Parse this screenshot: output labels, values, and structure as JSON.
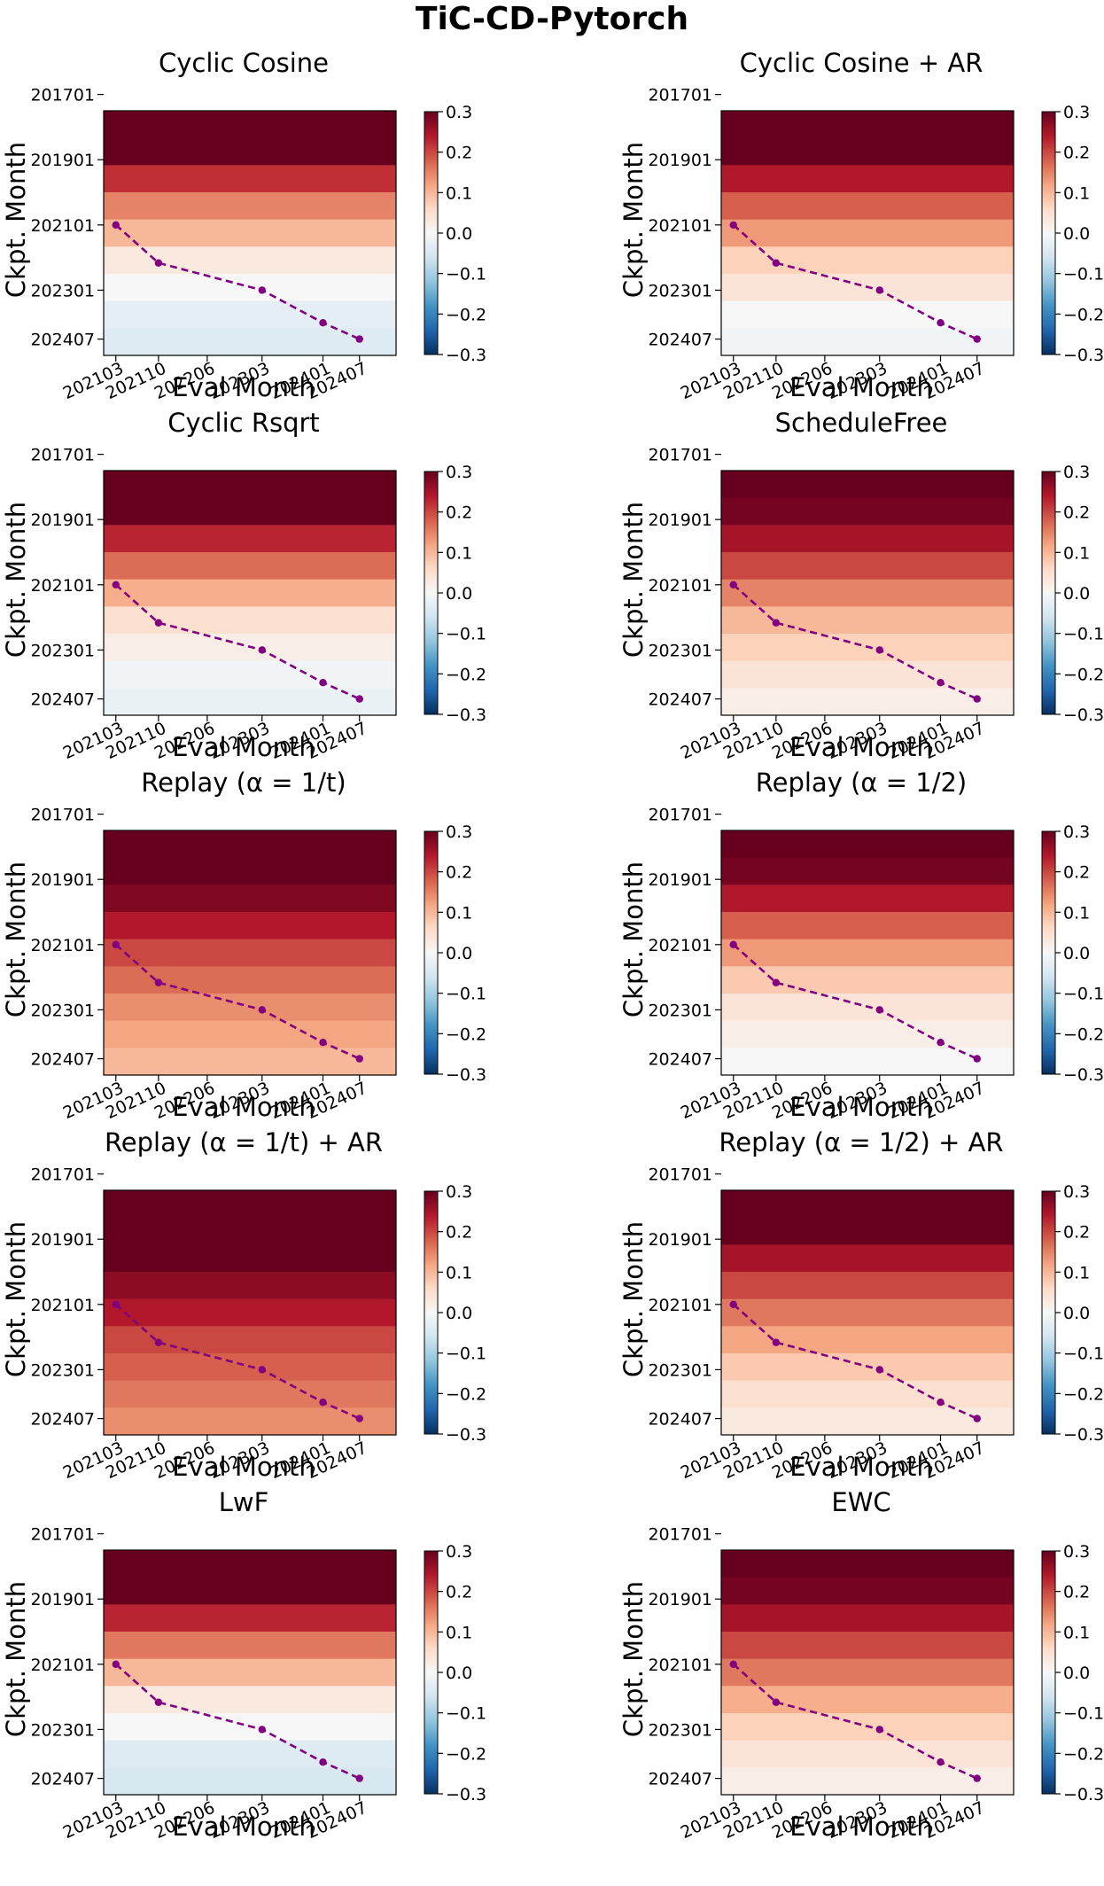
{
  "figure": {
    "title": "TiC-CD-Pytorch",
    "x_label": "Eval Month",
    "y_label": "Ckpt. Month"
  },
  "colors": {
    "colormap": "RdBu_r",
    "colormap_stops": [
      "#053061",
      "#2166ac",
      "#4393c3",
      "#92c5de",
      "#d1e5f0",
      "#f7f7f7",
      "#fddbc7",
      "#f4a582",
      "#d6604d",
      "#b2182b",
      "#67001f"
    ],
    "diagonal_line": "#800080"
  },
  "chart_data": [
    {
      "type": "heatmap",
      "title": "Cyclic Cosine",
      "xlabel": "Eval Month",
      "ylabel": "Ckpt. Month",
      "x_ticks": [
        "202103",
        "202110",
        "202206",
        "202303",
        "202401",
        "202407"
      ],
      "y_ticks": [
        "201701",
        "201901",
        "202101",
        "202301",
        "202407"
      ],
      "colorbar": {
        "range": [
          -0.3,
          0.3
        ],
        "ticks": [
          "0.3",
          "0.2",
          "0.1",
          "0.0",
          "−0.1",
          "−0.2",
          "−0.3"
        ]
      },
      "row_values": [
        0.3,
        0.3,
        0.22,
        0.15,
        0.1,
        0.03,
        0.0,
        -0.03,
        -0.04
      ],
      "diagonal_points": [
        [
          "202103",
          "202101"
        ],
        [
          "202110",
          "202203"
        ],
        [
          "202303",
          "202301"
        ],
        [
          "202401",
          "202401"
        ],
        [
          "202407",
          "202407"
        ]
      ]
    },
    {
      "type": "heatmap",
      "title": "Cyclic Cosine + AR",
      "xlabel": "Eval Month",
      "ylabel": "Ckpt. Month",
      "x_ticks": [
        "202103",
        "202110",
        "202206",
        "202303",
        "202401",
        "202407"
      ],
      "y_ticks": [
        "201701",
        "201901",
        "202101",
        "202301",
        "202407"
      ],
      "colorbar": {
        "range": [
          -0.3,
          0.3
        ],
        "ticks": [
          "0.3",
          "0.2",
          "0.1",
          "0.0",
          "−0.1",
          "−0.2",
          "−0.3"
        ]
      },
      "row_values": [
        0.3,
        0.3,
        0.24,
        0.18,
        0.13,
        0.07,
        0.04,
        0.0,
        -0.01
      ],
      "diagonal_points": [
        [
          "202103",
          "202101"
        ],
        [
          "202110",
          "202203"
        ],
        [
          "202303",
          "202301"
        ],
        [
          "202401",
          "202401"
        ],
        [
          "202407",
          "202407"
        ]
      ]
    },
    {
      "type": "heatmap",
      "title": "Cyclic Rsqrt",
      "xlabel": "Eval Month",
      "ylabel": "Ckpt. Month",
      "x_ticks": [
        "202103",
        "202110",
        "202206",
        "202303",
        "202401",
        "202407"
      ],
      "y_ticks": [
        "201701",
        "201901",
        "202101",
        "202301",
        "202407"
      ],
      "colorbar": {
        "range": [
          -0.3,
          0.3
        ],
        "ticks": [
          "0.3",
          "0.2",
          "0.1",
          "0.0",
          "−0.1",
          "−0.2",
          "−0.3"
        ]
      },
      "row_values": [
        0.3,
        0.3,
        0.23,
        0.17,
        0.11,
        0.05,
        0.02,
        -0.01,
        -0.02
      ],
      "diagonal_points": [
        [
          "202103",
          "202101"
        ],
        [
          "202110",
          "202203"
        ],
        [
          "202303",
          "202301"
        ],
        [
          "202401",
          "202401"
        ],
        [
          "202407",
          "202407"
        ]
      ]
    },
    {
      "type": "heatmap",
      "title": "ScheduleFree",
      "xlabel": "Eval Month",
      "ylabel": "Ckpt. Month",
      "x_ticks": [
        "202103",
        "202110",
        "202206",
        "202303",
        "202401",
        "202407"
      ],
      "y_ticks": [
        "201701",
        "201901",
        "202101",
        "202301",
        "202407"
      ],
      "colorbar": {
        "range": [
          -0.3,
          0.3
        ],
        "ticks": [
          "0.3",
          "0.2",
          "0.1",
          "0.0",
          "−0.1",
          "−0.2",
          "−0.3"
        ]
      },
      "row_values": [
        0.3,
        0.29,
        0.25,
        0.2,
        0.15,
        0.1,
        0.07,
        0.04,
        0.02
      ],
      "diagonal_points": [
        [
          "202103",
          "202101"
        ],
        [
          "202110",
          "202203"
        ],
        [
          "202303",
          "202301"
        ],
        [
          "202401",
          "202401"
        ],
        [
          "202407",
          "202407"
        ]
      ]
    },
    {
      "type": "heatmap",
      "title": "Replay (α = 1/t)",
      "xlabel": "Eval Month",
      "ylabel": "Ckpt. Month",
      "x_ticks": [
        "202103",
        "202110",
        "202206",
        "202303",
        "202401",
        "202407"
      ],
      "y_ticks": [
        "201701",
        "201901",
        "202101",
        "202301",
        "202407"
      ],
      "colorbar": {
        "range": [
          -0.3,
          0.3
        ],
        "ticks": [
          "0.3",
          "0.2",
          "0.1",
          "0.0",
          "−0.1",
          "−0.2",
          "−0.3"
        ]
      },
      "row_values": [
        0.3,
        0.3,
        0.28,
        0.24,
        0.2,
        0.17,
        0.14,
        0.12,
        0.1
      ],
      "diagonal_points": [
        [
          "202103",
          "202101"
        ],
        [
          "202110",
          "202203"
        ],
        [
          "202303",
          "202301"
        ],
        [
          "202401",
          "202401"
        ],
        [
          "202407",
          "202407"
        ]
      ]
    },
    {
      "type": "heatmap",
      "title": "Replay (α = 1/2)",
      "xlabel": "Eval Month",
      "ylabel": "Ckpt. Month",
      "x_ticks": [
        "202103",
        "202110",
        "202206",
        "202303",
        "202401",
        "202407"
      ],
      "y_ticks": [
        "201701",
        "201901",
        "202101",
        "202301",
        "202407"
      ],
      "colorbar": {
        "range": [
          -0.3,
          0.3
        ],
        "ticks": [
          "0.3",
          "0.2",
          "0.1",
          "0.0",
          "−0.1",
          "−0.2",
          "−0.3"
        ]
      },
      "row_values": [
        0.3,
        0.29,
        0.24,
        0.18,
        0.13,
        0.08,
        0.04,
        0.02,
        0.0
      ],
      "diagonal_points": [
        [
          "202103",
          "202101"
        ],
        [
          "202110",
          "202203"
        ],
        [
          "202303",
          "202301"
        ],
        [
          "202401",
          "202401"
        ],
        [
          "202407",
          "202407"
        ]
      ]
    },
    {
      "type": "heatmap",
      "title": "Replay (α = 1/t) + AR",
      "xlabel": "Eval Month",
      "ylabel": "Ckpt. Month",
      "x_ticks": [
        "202103",
        "202110",
        "202206",
        "202303",
        "202401",
        "202407"
      ],
      "y_ticks": [
        "201701",
        "201901",
        "202101",
        "202301",
        "202407"
      ],
      "colorbar": {
        "range": [
          -0.3,
          0.3
        ],
        "ticks": [
          "0.3",
          "0.2",
          "0.1",
          "0.0",
          "−0.1",
          "−0.2",
          "−0.3"
        ]
      },
      "row_values": [
        0.3,
        0.3,
        0.3,
        0.27,
        0.24,
        0.2,
        0.18,
        0.16,
        0.14
      ],
      "diagonal_points": [
        [
          "202103",
          "202101"
        ],
        [
          "202110",
          "202203"
        ],
        [
          "202303",
          "202301"
        ],
        [
          "202401",
          "202401"
        ],
        [
          "202407",
          "202407"
        ]
      ]
    },
    {
      "type": "heatmap",
      "title": "Replay (α = 1/2) + AR",
      "xlabel": "Eval Month",
      "ylabel": "Ckpt. Month",
      "x_ticks": [
        "202103",
        "202110",
        "202206",
        "202303",
        "202401",
        "202407"
      ],
      "y_ticks": [
        "201701",
        "201901",
        "202101",
        "202301",
        "202407"
      ],
      "colorbar": {
        "range": [
          -0.3,
          0.3
        ],
        "ticks": [
          "0.3",
          "0.2",
          "0.1",
          "0.0",
          "−0.1",
          "−0.2",
          "−0.3"
        ]
      },
      "row_values": [
        0.3,
        0.3,
        0.25,
        0.2,
        0.16,
        0.12,
        0.08,
        0.05,
        0.03
      ],
      "diagonal_points": [
        [
          "202103",
          "202101"
        ],
        [
          "202110",
          "202203"
        ],
        [
          "202303",
          "202301"
        ],
        [
          "202401",
          "202401"
        ],
        [
          "202407",
          "202407"
        ]
      ]
    },
    {
      "type": "heatmap",
      "title": "LwF",
      "xlabel": "Eval Month",
      "ylabel": "Ckpt. Month",
      "x_ticks": [
        "202103",
        "202110",
        "202206",
        "202303",
        "202401",
        "202407"
      ],
      "y_ticks": [
        "201701",
        "201901",
        "202101",
        "202301",
        "202407"
      ],
      "colorbar": {
        "range": [
          -0.3,
          0.3
        ],
        "ticks": [
          "0.3",
          "0.2",
          "0.1",
          "0.0",
          "−0.1",
          "−0.2",
          "−0.3"
        ]
      },
      "row_values": [
        0.3,
        0.3,
        0.23,
        0.16,
        0.1,
        0.03,
        0.0,
        -0.04,
        -0.05
      ],
      "diagonal_points": [
        [
          "202103",
          "202101"
        ],
        [
          "202110",
          "202203"
        ],
        [
          "202303",
          "202301"
        ],
        [
          "202401",
          "202401"
        ],
        [
          "202407",
          "202407"
        ]
      ]
    },
    {
      "type": "heatmap",
      "title": "EWC",
      "xlabel": "Eval Month",
      "ylabel": "Ckpt. Month",
      "x_ticks": [
        "202103",
        "202110",
        "202206",
        "202303",
        "202401",
        "202407"
      ],
      "y_ticks": [
        "201701",
        "201901",
        "202101",
        "202301",
        "202407"
      ],
      "colorbar": {
        "range": [
          -0.3,
          0.3
        ],
        "ticks": [
          "0.3",
          "0.2",
          "0.1",
          "0.0",
          "−0.1",
          "−0.2",
          "−0.3"
        ]
      },
      "row_values": [
        0.3,
        0.29,
        0.25,
        0.2,
        0.16,
        0.11,
        0.07,
        0.04,
        0.02
      ],
      "diagonal_points": [
        [
          "202103",
          "202101"
        ],
        [
          "202110",
          "202203"
        ],
        [
          "202303",
          "202301"
        ],
        [
          "202401",
          "202401"
        ],
        [
          "202407",
          "202407"
        ]
      ]
    }
  ]
}
